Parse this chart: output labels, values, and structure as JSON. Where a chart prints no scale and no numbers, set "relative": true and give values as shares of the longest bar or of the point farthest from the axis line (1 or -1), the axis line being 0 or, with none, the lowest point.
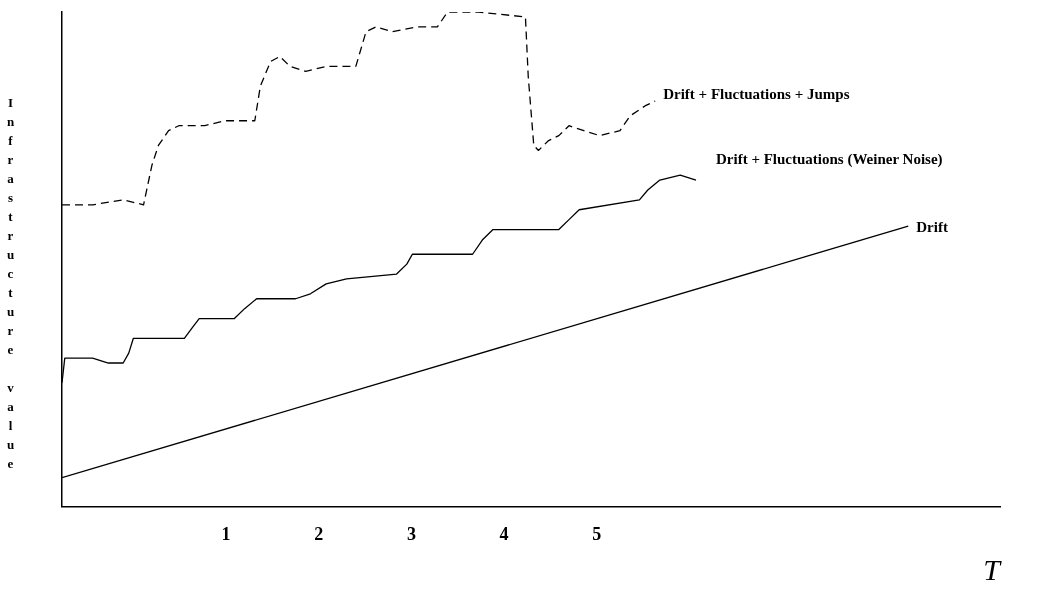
{
  "chart_data": {
    "type": "line",
    "relative": true,
    "xlabel": "T",
    "ylabel": "Infrastructure value",
    "xlim": [
      -0.77,
      9.35
    ],
    "xticks": [
      1,
      2,
      3,
      4,
      5
    ],
    "grid": false,
    "legend": false,
    "marker": "none",
    "series": [
      {
        "name": "Drift + Fluctuations + Jumps",
        "color": "#000000",
        "line_style": "dashed",
        "x": [
          -0.77,
          -0.6,
          -0.44,
          -0.11,
          0.11,
          0.2,
          0.27,
          0.38,
          0.49,
          0.77,
          0.98,
          1.2,
          1.31,
          1.37,
          1.48,
          1.58,
          1.69,
          1.86,
          2.08,
          2.4,
          2.51,
          2.62,
          2.79,
          3.06,
          3.28,
          3.39,
          3.72,
          4.23,
          4.26,
          4.32,
          4.37,
          4.48,
          4.59,
          4.7,
          4.86,
          5.03,
          5.25,
          5.36,
          5.52,
          5.63
        ],
        "values": [
          0.61,
          0.61,
          0.61,
          0.62,
          0.61,
          0.69,
          0.73,
          0.76,
          0.77,
          0.77,
          0.78,
          0.78,
          0.78,
          0.85,
          0.9,
          0.91,
          0.89,
          0.88,
          0.89,
          0.89,
          0.96,
          0.97,
          0.96,
          0.97,
          0.97,
          1.0,
          1.0,
          0.99,
          0.87,
          0.73,
          0.72,
          0.74,
          0.75,
          0.77,
          0.76,
          0.75,
          0.76,
          0.79,
          0.81,
          0.82
        ]
      },
      {
        "name": "Drift + Fluctuations (Weiner Noise)",
        "color": "#000000",
        "line_style": "solid",
        "x": [
          -0.77,
          -0.74,
          -0.66,
          -0.44,
          -0.27,
          -0.11,
          -0.05,
          0,
          0.22,
          0.55,
          0.63,
          0.71,
          1.09,
          1.2,
          1.33,
          1.75,
          1.91,
          2.08,
          2.3,
          2.84,
          2.95,
          3.01,
          3.66,
          3.77,
          3.88,
          4.59,
          4.7,
          4.81,
          5.46,
          5.55,
          5.68,
          5.9,
          6.07
        ],
        "values": [
          0.25,
          0.3,
          0.3,
          0.3,
          0.29,
          0.29,
          0.31,
          0.34,
          0.34,
          0.34,
          0.36,
          0.38,
          0.38,
          0.4,
          0.42,
          0.42,
          0.43,
          0.45,
          0.46,
          0.47,
          0.49,
          0.51,
          0.51,
          0.54,
          0.56,
          0.56,
          0.58,
          0.6,
          0.62,
          0.64,
          0.66,
          0.67,
          0.66
        ]
      },
      {
        "name": "Drift",
        "color": "#000000",
        "line_style": "solid",
        "x": [
          -0.77,
          8.36
        ],
        "values": [
          0.058,
          0.567
        ]
      }
    ]
  }
}
